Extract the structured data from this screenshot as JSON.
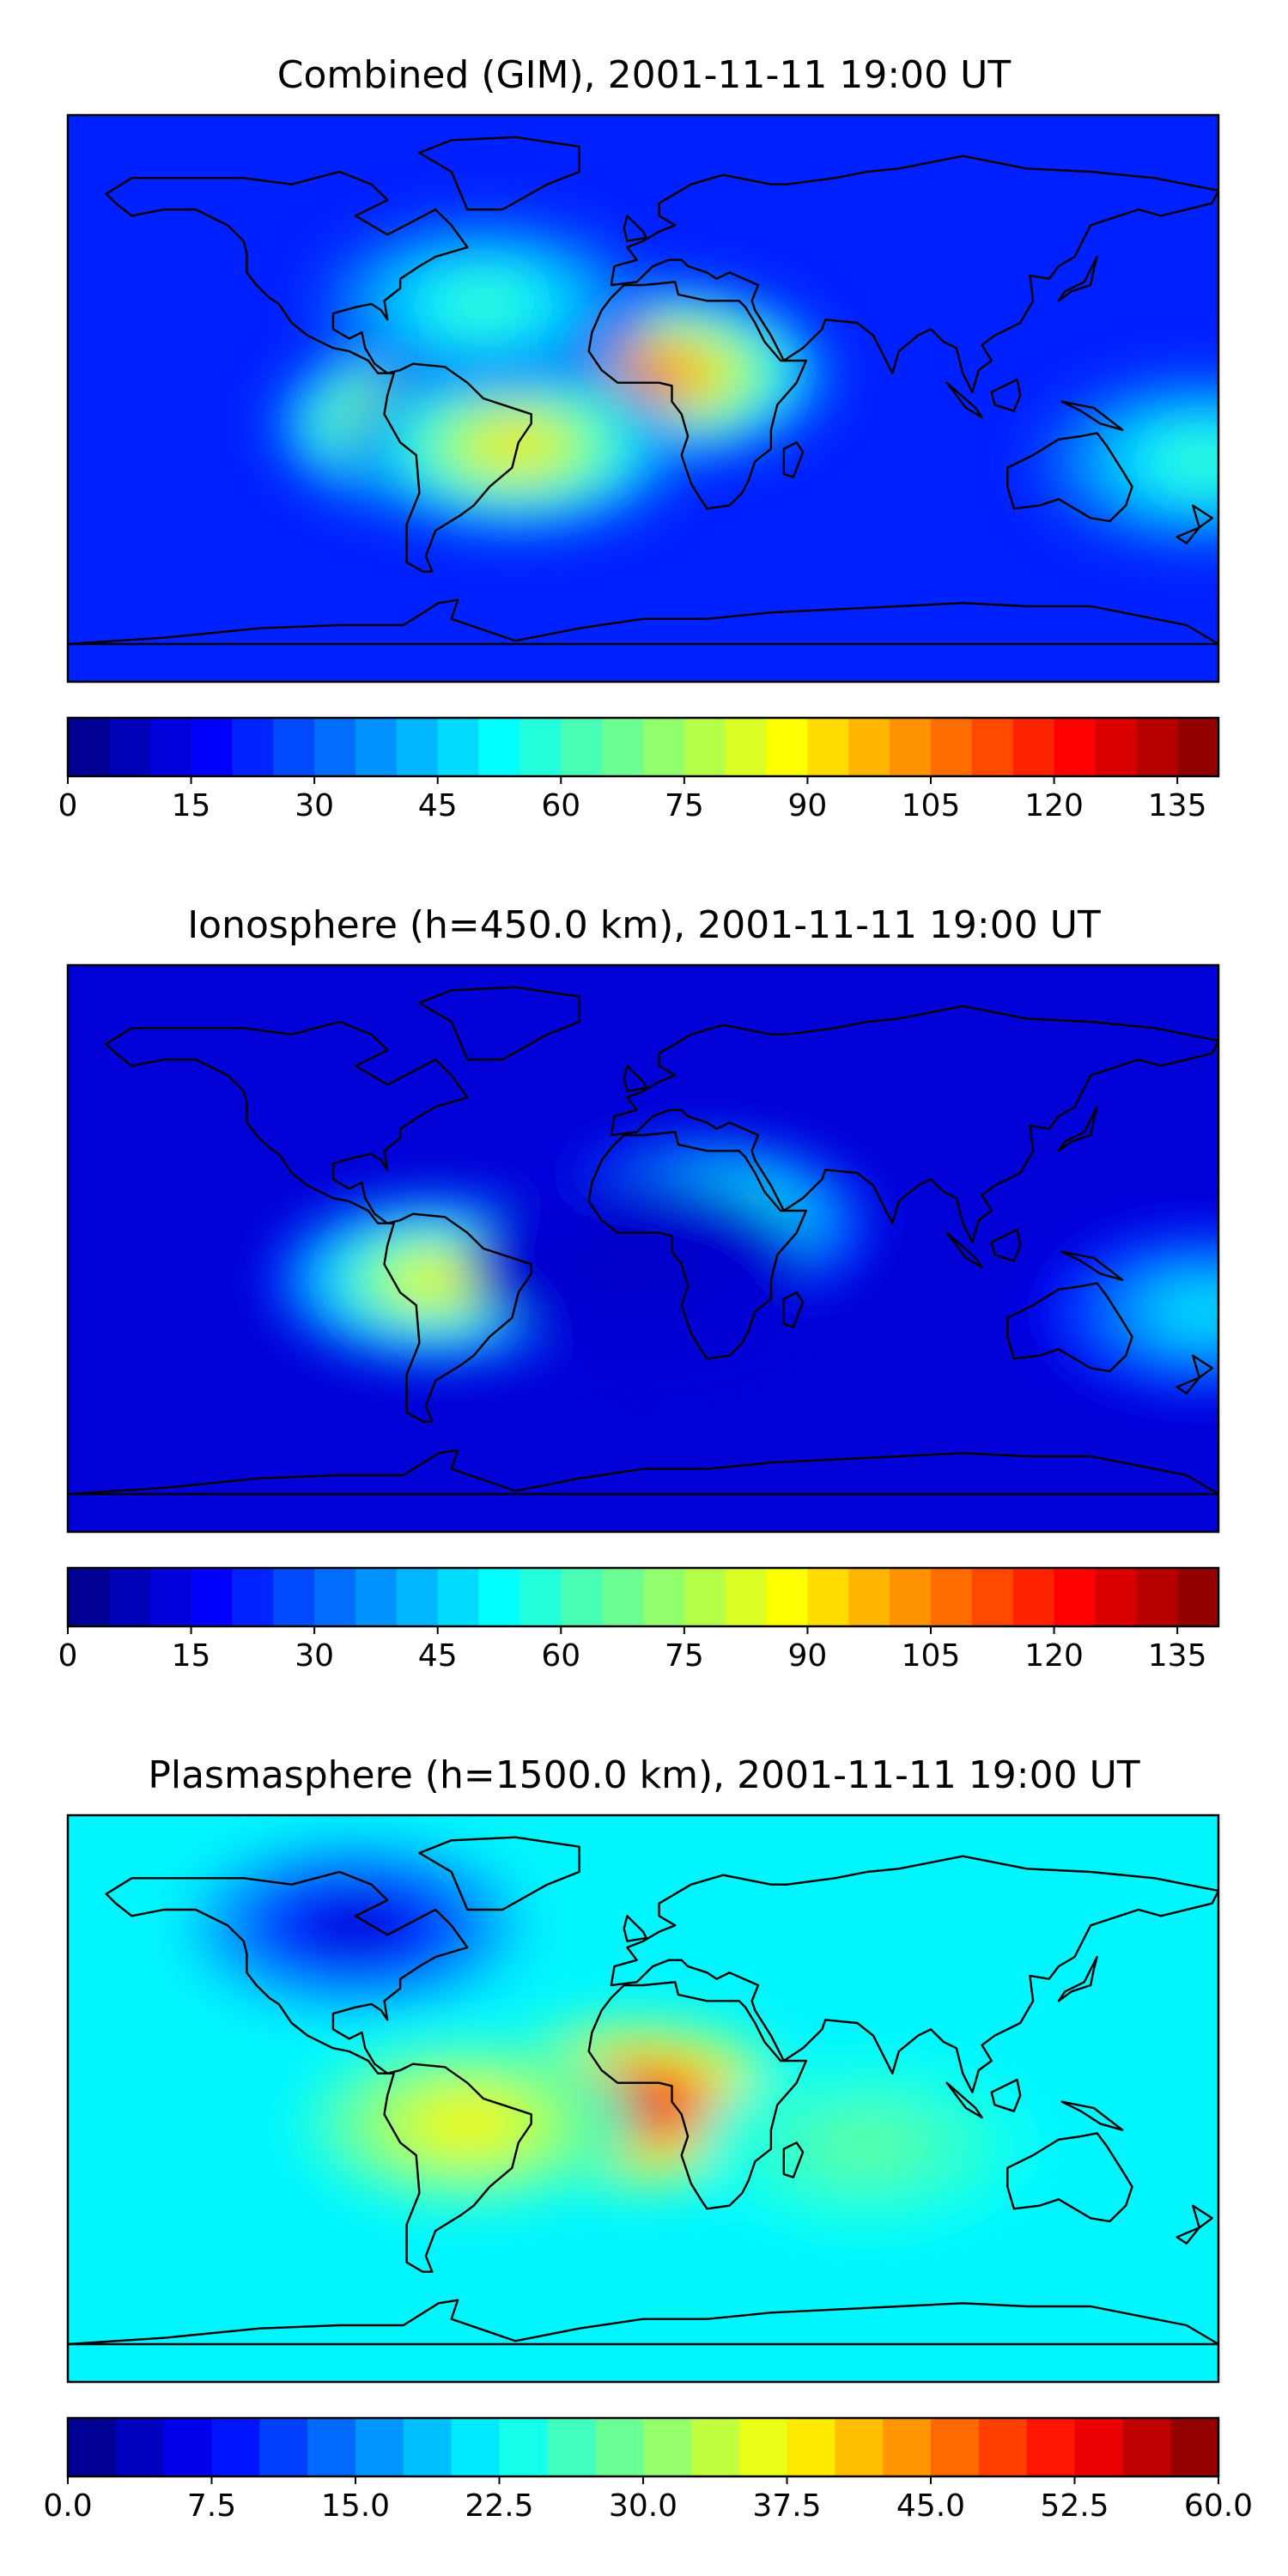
{
  "chart_data": [
    {
      "type": "heatmap",
      "title": "Combined (GIM), 2001-11-11 19:00 UT",
      "projection": "equirectangular world map with coastlines",
      "colormap": "jet",
      "colorbar": {
        "vmin": 0,
        "vmax": 140,
        "levels": 28,
        "ticks": [
          0,
          15,
          30,
          45,
          60,
          75,
          90,
          105,
          120,
          135
        ],
        "tick_labels": [
          "0",
          "15",
          "30",
          "45",
          "60",
          "75",
          "90",
          "105",
          "120",
          "135"
        ]
      },
      "background_value": 22,
      "features": [
        {
          "name": "South American equatorial anomaly",
          "lon": -62,
          "lat": -8,
          "peak": 118
        },
        {
          "name": "West African anomaly",
          "lon": 5,
          "lat": 8,
          "peak": 108
        },
        {
          "name": "Atlantic crest",
          "lon": -40,
          "lat": -15,
          "peak": 92
        },
        {
          "name": "North Atlantic band",
          "lon": -50,
          "lat": 30,
          "peak": 60
        },
        {
          "name": "Australian east edge",
          "lon": 175,
          "lat": -20,
          "peak": 60
        }
      ]
    },
    {
      "type": "heatmap",
      "title": "Ionosphere  (h=450.0 km), 2001-11-11 19:00 UT",
      "projection": "equirectangular world map with coastlines",
      "colormap": "jet",
      "colorbar": {
        "vmin": 0,
        "vmax": 140,
        "levels": 28,
        "ticks": [
          0,
          15,
          30,
          45,
          60,
          75,
          90,
          105,
          120,
          135
        ],
        "tick_labels": [
          "0",
          "15",
          "30",
          "45",
          "60",
          "75",
          "90",
          "105",
          "120",
          "135"
        ]
      },
      "background_value": 12,
      "features": [
        {
          "name": "South American equatorial anomaly",
          "lon": -65,
          "lat": -10,
          "peak": 88
        },
        {
          "name": "Arabian band",
          "lon": 20,
          "lat": 8,
          "peak": 75
        },
        {
          "name": "Gulf of Guinea trough",
          "lon": -2,
          "lat": -5,
          "peak": 10
        },
        {
          "name": "Australian east edge",
          "lon": 175,
          "lat": -20,
          "peak": 50
        }
      ]
    },
    {
      "type": "heatmap",
      "title": "Plasmasphere (h=1500.0 km), 2001-11-11 19:00 UT",
      "projection": "equirectangular world map with coastlines",
      "colormap": "jet",
      "colorbar": {
        "vmin": 0,
        "vmax": 60,
        "levels": 24,
        "ticks": [
          0,
          7.5,
          15,
          22.5,
          30,
          37.5,
          45,
          52.5,
          60
        ],
        "tick_labels": [
          "0.0",
          "7.5",
          "15.0",
          "22.5",
          "30.0",
          "37.5",
          "45.0",
          "52.5",
          "60.0"
        ]
      },
      "background_value": 22,
      "features": [
        {
          "name": "Central African maximum",
          "lon": -3,
          "lat": -2,
          "peak": 55
        },
        {
          "name": "South American crest",
          "lon": -55,
          "lat": -8,
          "peak": 38
        },
        {
          "name": "North American minimum",
          "lon": -90,
          "lat": 55,
          "peak": 4
        },
        {
          "name": "Indian Ocean band",
          "lon": 70,
          "lat": -15,
          "peak": 28
        }
      ]
    }
  ]
}
